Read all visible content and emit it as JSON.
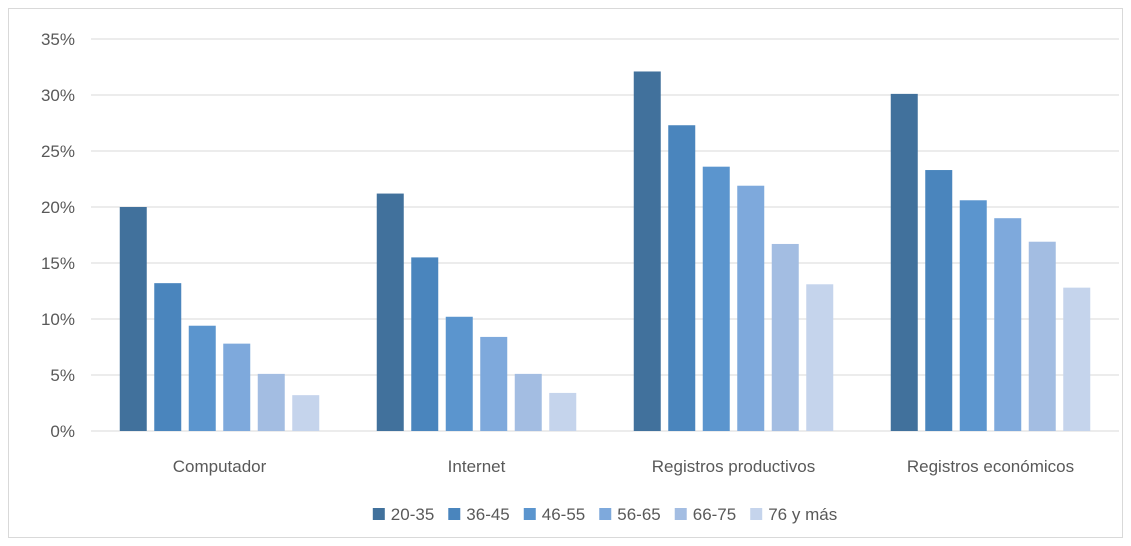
{
  "chart_data": {
    "type": "bar",
    "title": "",
    "xlabel": "",
    "ylabel": "",
    "ylim": [
      0,
      0.35
    ],
    "y_ticks": [
      "0%",
      "5%",
      "10%",
      "15%",
      "20%",
      "25%",
      "30%",
      "35%"
    ],
    "y_tick_values": [
      0,
      0.05,
      0.1,
      0.15,
      0.2,
      0.25,
      0.3,
      0.35
    ],
    "grid": true,
    "legend_position": "bottom",
    "categories": [
      "Computador",
      "Internet",
      "Registros productivos",
      "Registros económicos"
    ],
    "series": [
      {
        "name": "20-35",
        "color": "#41719c",
        "values": [
          0.2,
          0.212,
          0.321,
          0.301
        ]
      },
      {
        "name": "36-45",
        "color": "#4a85bd",
        "values": [
          0.132,
          0.155,
          0.273,
          0.233
        ]
      },
      {
        "name": "46-55",
        "color": "#5b95ce",
        "values": [
          0.094,
          0.102,
          0.236,
          0.206
        ]
      },
      {
        "name": "56-65",
        "color": "#7ea9dc",
        "values": [
          0.078,
          0.084,
          0.219,
          0.19
        ]
      },
      {
        "name": "66-75",
        "color": "#a3bde2",
        "values": [
          0.051,
          0.051,
          0.167,
          0.169
        ]
      },
      {
        "name": "76 y más",
        "color": "#c5d4ec",
        "values": [
          0.032,
          0.034,
          0.131,
          0.128
        ]
      }
    ]
  }
}
